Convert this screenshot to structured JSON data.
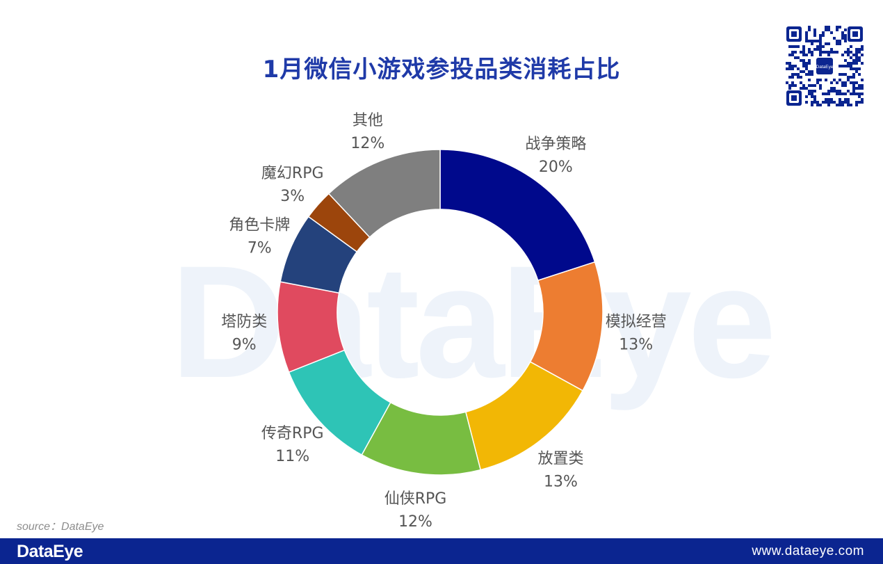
{
  "title": "1月微信小游戏参投品类消耗占比",
  "watermark": "DataEye",
  "source": "source：DataEye",
  "footer": {
    "logo": "DataEye",
    "url": "www.dataeye.com"
  },
  "qr": {
    "center_label": "DataEye"
  },
  "colors": {
    "title": "#1f3aa8",
    "footer_bg": "#0b2590",
    "label": "#555555"
  },
  "chart_data": {
    "type": "pie",
    "style": "donut",
    "title": "1月微信小游戏参投品类消耗占比",
    "slices": [
      {
        "label": "战争策略",
        "value": 20,
        "pct_label": "20%",
        "color": "#00098c"
      },
      {
        "label": "模拟经营",
        "value": 13,
        "pct_label": "13%",
        "color": "#ed7d31"
      },
      {
        "label": "放置类",
        "value": 13,
        "pct_label": "13%",
        "color": "#f2b705"
      },
      {
        "label": "仙侠RPG",
        "value": 12,
        "pct_label": "12%",
        "color": "#78bd41"
      },
      {
        "label": "传奇RPG",
        "value": 11,
        "pct_label": "11%",
        "color": "#2ec4b6"
      },
      {
        "label": "塔防类",
        "value": 9,
        "pct_label": "9%",
        "color": "#e04a5f"
      },
      {
        "label": "角色卡牌",
        "value": 7,
        "pct_label": "7%",
        "color": "#24427c"
      },
      {
        "label": "魔幻RPG",
        "value": 3,
        "pct_label": "3%",
        "color": "#9c450c"
      },
      {
        "label": "其他",
        "value": 12,
        "pct_label": "12%",
        "color": "#7f7f7f"
      }
    ]
  }
}
